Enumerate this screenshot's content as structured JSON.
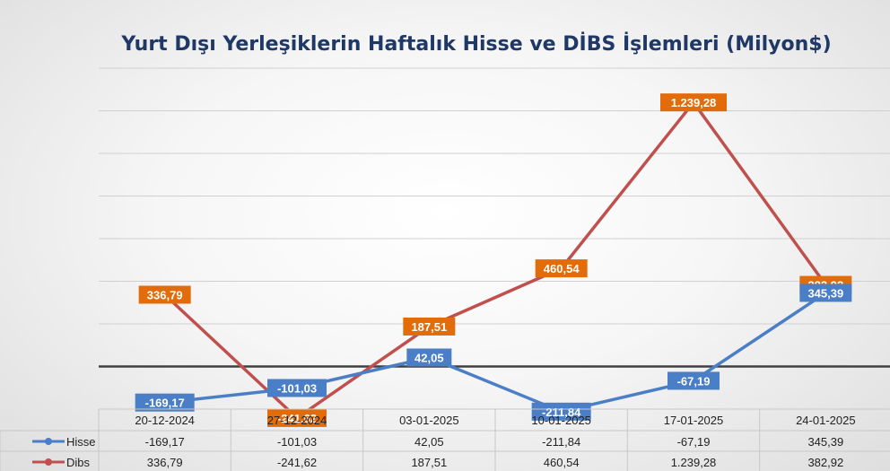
{
  "chart_data": {
    "type": "line",
    "title": "Yurt Dışı Yerleşiklerin Haftalık Hisse ve DİBS İşlemleri (Milyon$)",
    "categories": [
      "20-12-2024",
      "27-12-2024",
      "03-01-2025",
      "10-01-2025",
      "17-01-2025",
      "24-01-2025"
    ],
    "series": [
      {
        "name": "Hisse",
        "values": [
          -169.17,
          -101.03,
          42.05,
          -211.84,
          -67.19,
          345.39
        ],
        "labels": [
          "-169,17",
          "-101,03",
          "42,05",
          "-211,84",
          "-67,19",
          "345,39"
        ],
        "color": "#4a7ec6",
        "label_color": "#4a7ec6"
      },
      {
        "name": "Dibs",
        "values": [
          336.79,
          -241.62,
          187.51,
          460.54,
          1239.28,
          382.92
        ],
        "labels": [
          "336,79",
          "-241,62",
          "187,51",
          "460,54",
          "1.239,28",
          "382,92"
        ],
        "color": "#c0504d",
        "label_color": "#e36c0a"
      }
    ],
    "ylim": [
      -200,
      1400
    ],
    "grid": true,
    "legend": "data-table",
    "xlabel": "",
    "ylabel": ""
  }
}
